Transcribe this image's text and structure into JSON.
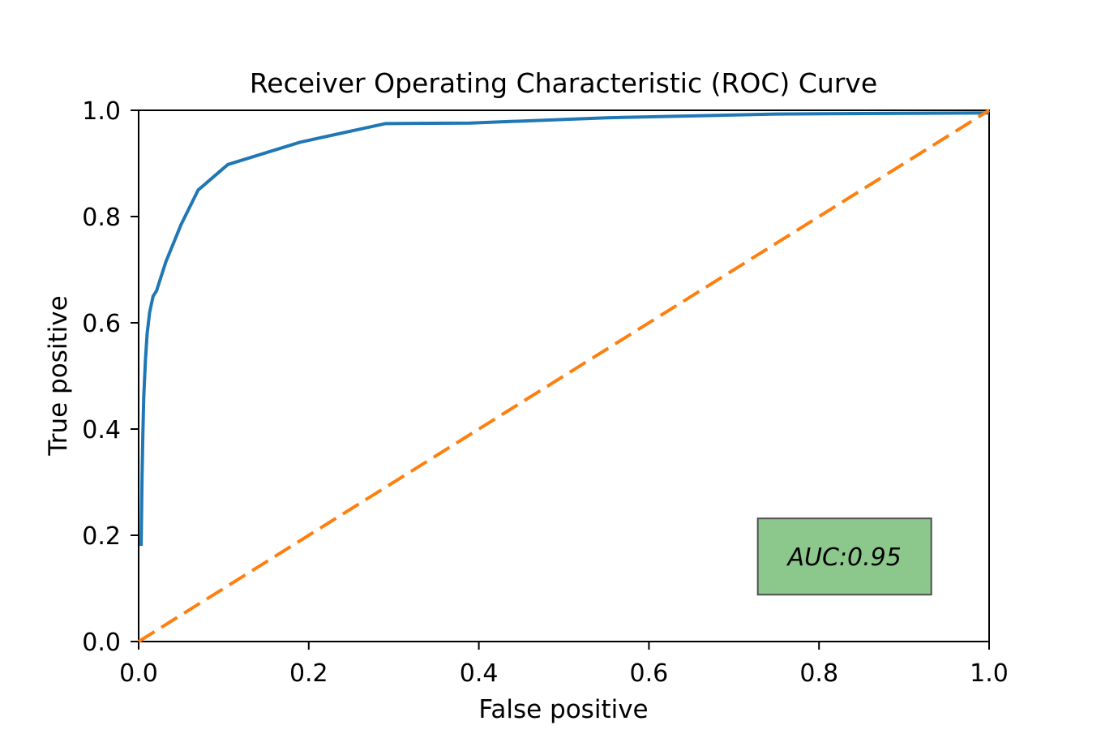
{
  "chart_data": {
    "type": "line",
    "title": "Receiver Operating Characteristic (ROC) Curve",
    "xlabel": "False positive",
    "ylabel": "True positive",
    "xlim": [
      0.0,
      1.0
    ],
    "ylim": [
      0.0,
      1.0
    ],
    "xticks": [
      "0.0",
      "0.2",
      "0.4",
      "0.6",
      "0.8",
      "1.0"
    ],
    "yticks": [
      "0.0",
      "0.2",
      "0.4",
      "0.6",
      "0.8",
      "1.0"
    ],
    "grid": false,
    "legend": "none",
    "series": [
      {
        "name": "roc-curve",
        "color": "#1f77b4",
        "style": "solid",
        "points": [
          [
            0.003,
            0.18
          ],
          [
            0.004,
            0.31
          ],
          [
            0.005,
            0.39
          ],
          [
            0.006,
            0.46
          ],
          [
            0.008,
            0.53
          ],
          [
            0.01,
            0.58
          ],
          [
            0.013,
            0.62
          ],
          [
            0.017,
            0.65
          ],
          [
            0.021,
            0.66
          ],
          [
            0.032,
            0.715
          ],
          [
            0.05,
            0.785
          ],
          [
            0.07,
            0.85
          ],
          [
            0.105,
            0.898
          ],
          [
            0.19,
            0.94
          ],
          [
            0.29,
            0.975
          ],
          [
            0.39,
            0.976
          ],
          [
            0.55,
            0.986
          ],
          [
            0.75,
            0.993
          ],
          [
            1.0,
            0.995
          ]
        ]
      },
      {
        "name": "chance-diagonal",
        "color": "#ff7f0e",
        "style": "dashed",
        "points": [
          [
            0.0,
            0.0
          ],
          [
            1.0,
            1.0
          ]
        ]
      }
    ],
    "annotation": {
      "label": "AUC:0.95",
      "box_fill": "#8cc88c",
      "box_border": "#4f4f4f",
      "anchor_x": 0.83,
      "anchor_y": 0.16
    }
  }
}
